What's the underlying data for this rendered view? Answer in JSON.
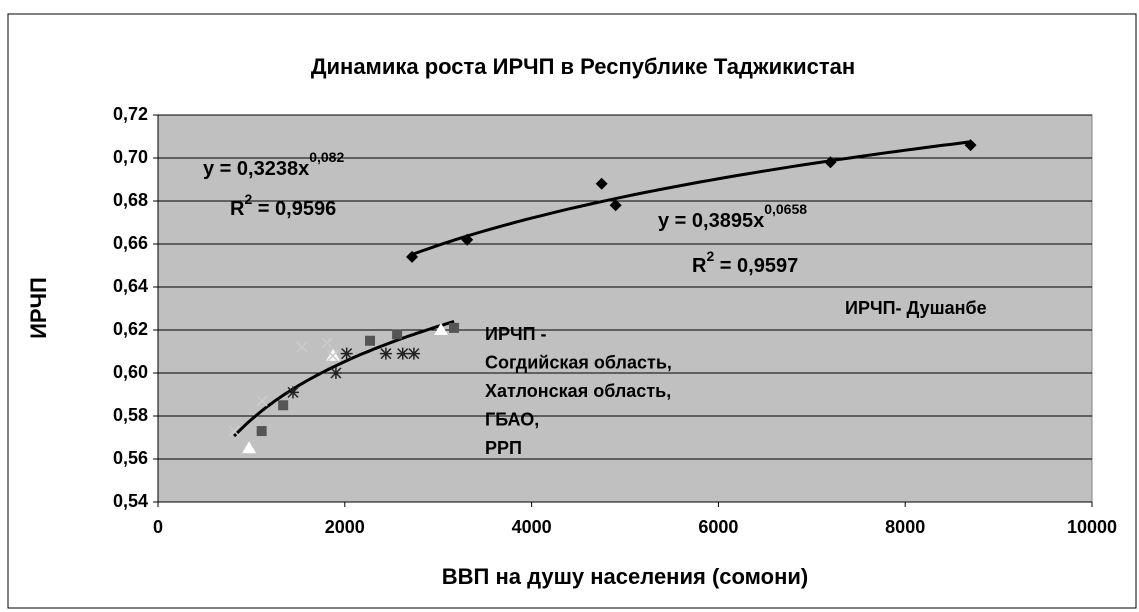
{
  "chart_data": {
    "type": "scatter",
    "title": "Динамика роста ИРЧП в Республике Таджикистан",
    "x_label": "ВВП на душу населения (сомони)",
    "y_label": "ИРЧП",
    "xlim": [
      0,
      10000
    ],
    "xticks": [
      0,
      2000,
      4000,
      6000,
      8000,
      10000
    ],
    "ylim": [
      0.54,
      0.72
    ],
    "yticks": [
      {
        "value": 0.54,
        "label": "0,54"
      },
      {
        "value": 0.56,
        "label": "0,56"
      },
      {
        "value": 0.58,
        "label": "0,58"
      },
      {
        "value": 0.6,
        "label": "0,60"
      },
      {
        "value": 0.62,
        "label": "0,62"
      },
      {
        "value": 0.64,
        "label": "0,64"
      },
      {
        "value": 0.66,
        "label": "0,66"
      },
      {
        "value": 0.68,
        "label": "0,68"
      },
      {
        "value": 0.7,
        "label": "0,70"
      },
      {
        "value": 0.72,
        "label": "0,72"
      }
    ],
    "grid": true,
    "series": [
      {
        "marker": "diamond",
        "color": "#000000",
        "x": [
          2720,
          3310,
          4750,
          4900,
          7200,
          8700
        ],
        "values": [
          0.654,
          0.662,
          0.688,
          0.678,
          0.698,
          0.706
        ]
      },
      {
        "marker": "square",
        "color": "#555555",
        "x": [
          1110,
          1340,
          2270,
          2560,
          3170
        ],
        "values": [
          0.573,
          0.585,
          0.615,
          0.618,
          0.621
        ]
      },
      {
        "marker": "star",
        "color": "#222222",
        "x": [
          1445,
          1905,
          2020,
          2440,
          2620,
          2740
        ],
        "values": [
          0.591,
          0.6,
          0.609,
          0.609,
          0.609,
          0.609
        ]
      },
      {
        "marker": "triangle",
        "color": "#ffffff",
        "x": [
          975,
          1875,
          3030
        ],
        "values": [
          0.565,
          0.608,
          0.62
        ]
      },
      {
        "marker": "x",
        "color": "#cccccc",
        "x": [
          815,
          1115,
          1540,
          1810,
          1870
        ],
        "values": [
          0.573,
          0.587,
          0.612,
          0.614,
          0.608
        ]
      }
    ],
    "equations": [
      {
        "formula": "y = 0,3238x",
        "exponent": "0,082",
        "r": "R",
        "r_exponent": "2",
        "r_value": " = 0,9596"
      },
      {
        "formula": "y = 0,3895x",
        "exponent": "0,0658",
        "r": "R",
        "r_exponent": "2",
        "r_value": " = 0,9597"
      }
    ],
    "annotations": [
      {
        "lines": [
          "ИРЧП- Душанбе"
        ]
      },
      {
        "lines": [
          "ИРЧП -",
          "Согдийская область,",
          "Хатлонская область,",
          "ГБАО,",
          "РРП"
        ]
      }
    ]
  }
}
